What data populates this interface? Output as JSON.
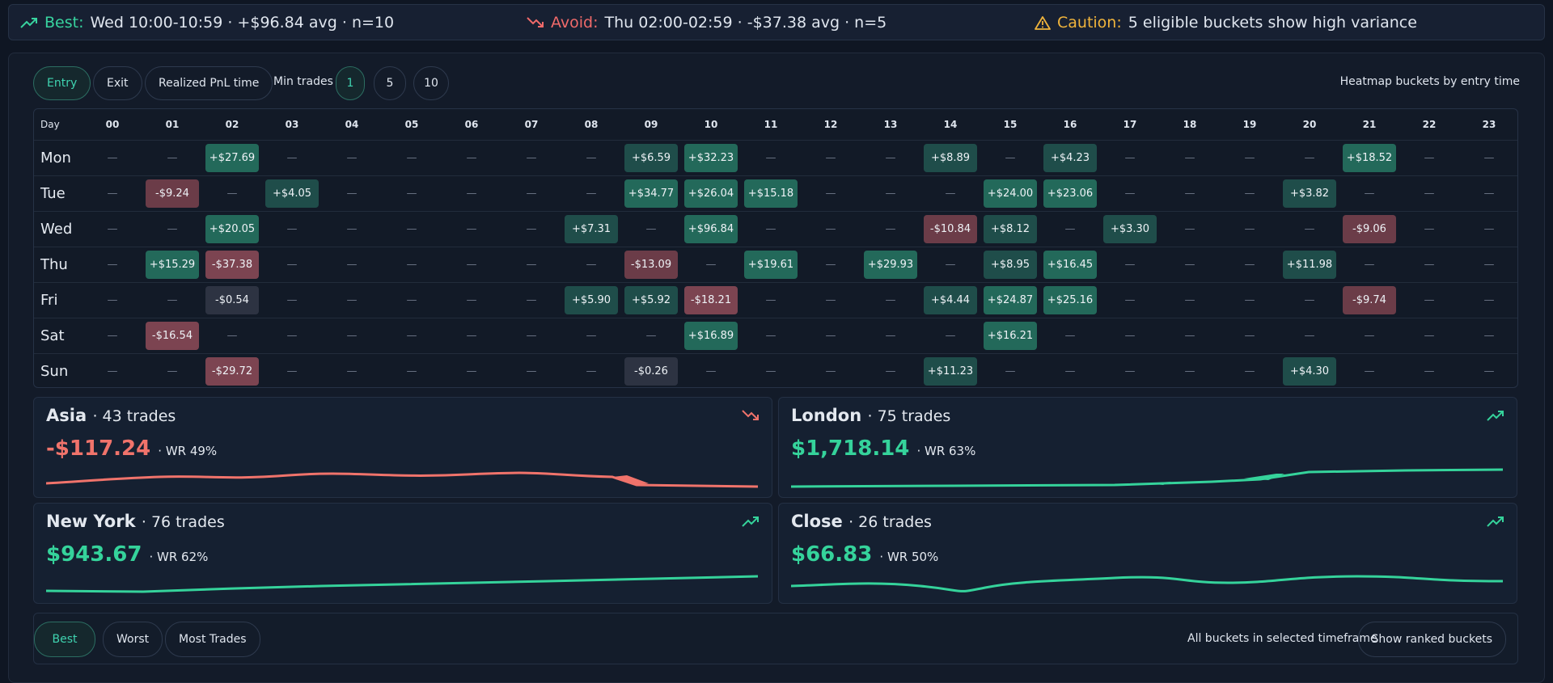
{
  "banner": {
    "best": {
      "label": "Best:",
      "text": "Wed 10:00-10:59 · +$96.84 avg · n=10"
    },
    "avoid": {
      "label": "Avoid:",
      "text": "Thu 02:00-02:59 · -$37.38 avg · n=5"
    },
    "caution": {
      "label": "Caution:",
      "text": "5 eligible buckets show high variance"
    }
  },
  "controls": {
    "modes": [
      "Entry",
      "Exit",
      "Realized PnL time"
    ],
    "min_trades_label": "Min trades",
    "min_trades": [
      "1",
      "5",
      "10"
    ],
    "caption": "Heatmap buckets by entry time"
  },
  "heatmap": {
    "corner": "Day",
    "hours": [
      "00",
      "01",
      "02",
      "03",
      "04",
      "05",
      "06",
      "07",
      "08",
      "09",
      "10",
      "11",
      "12",
      "13",
      "14",
      "15",
      "16",
      "17",
      "18",
      "19",
      "20",
      "21",
      "22",
      "23"
    ],
    "rows": [
      {
        "day": "Mon",
        "cells": [
          "—",
          "—",
          "+$27.69",
          "—",
          "—",
          "—",
          "—",
          "—",
          "—",
          "+$6.59",
          "+$32.23",
          "—",
          "—",
          "—",
          "+$8.89",
          "—",
          "+$4.23",
          "—",
          "—",
          "—",
          "—",
          "+$18.52",
          "—",
          "—"
        ]
      },
      {
        "day": "Tue",
        "cells": [
          "—",
          "-$9.24",
          "—",
          "+$4.05",
          "—",
          "—",
          "—",
          "—",
          "—",
          "+$34.77",
          "+$26.04",
          "+$15.18",
          "—",
          "—",
          "—",
          "+$24.00",
          "+$23.06",
          "—",
          "—",
          "—",
          "+$3.82",
          "—",
          "—",
          "—"
        ]
      },
      {
        "day": "Wed",
        "cells": [
          "—",
          "—",
          "+$20.05",
          "—",
          "—",
          "—",
          "—",
          "—",
          "+$7.31",
          "—",
          "+$96.84",
          "—",
          "—",
          "—",
          "-$10.84",
          "+$8.12",
          "—",
          "+$3.30",
          "—",
          "—",
          "—",
          "-$9.06",
          "—",
          "—"
        ]
      },
      {
        "day": "Thu",
        "cells": [
          "—",
          "+$15.29",
          "-$37.38",
          "—",
          "—",
          "—",
          "—",
          "—",
          "—",
          "-$13.09",
          "—",
          "+$19.61",
          "—",
          "+$29.93",
          "—",
          "+$8.95",
          "+$16.45",
          "—",
          "—",
          "—",
          "+$11.98",
          "—",
          "—",
          "—"
        ]
      },
      {
        "day": "Fri",
        "cells": [
          "—",
          "—",
          "-$0.54",
          "—",
          "—",
          "—",
          "—",
          "—",
          "+$5.90",
          "+$5.92",
          "-$18.21",
          "—",
          "—",
          "—",
          "+$4.44",
          "+$24.87",
          "+$25.16",
          "—",
          "—",
          "—",
          "—",
          "-$9.74",
          "—",
          "—"
        ]
      },
      {
        "day": "Sat",
        "cells": [
          "—",
          "-$16.54",
          "—",
          "—",
          "—",
          "—",
          "—",
          "—",
          "—",
          "—",
          "+$16.89",
          "—",
          "—",
          "—",
          "—",
          "+$16.21",
          "—",
          "—",
          "—",
          "—",
          "—",
          "—",
          "—",
          "—"
        ]
      },
      {
        "day": "Sun",
        "cells": [
          "—",
          "—",
          "-$29.72",
          "—",
          "—",
          "—",
          "—",
          "—",
          "—",
          "-$0.26",
          "—",
          "—",
          "—",
          "—",
          "+$11.23",
          "—",
          "—",
          "—",
          "—",
          "—",
          "+$4.30",
          "—",
          "—",
          "—"
        ]
      }
    ]
  },
  "sessions": [
    {
      "name": "Asia",
      "trades": "· 43 trades",
      "pnl": "-$117.24",
      "winrate": "· WR 49%"
    },
    {
      "name": "London",
      "trades": "· 75 trades",
      "pnl": "$1,718.14",
      "winrate": "· WR 63%"
    },
    {
      "name": "New York",
      "trades": "· 76 trades",
      "pnl": "$943.67",
      "winrate": "· WR 62%"
    },
    {
      "name": "Close",
      "trades": "· 26 trades",
      "pnl": "$66.83",
      "winrate": "· WR 50%"
    }
  ],
  "footer": {
    "sorts": [
      "Best",
      "Worst",
      "Most Trades"
    ],
    "caption": "All buckets in selected timeframe",
    "button": "Show ranked buckets"
  }
}
